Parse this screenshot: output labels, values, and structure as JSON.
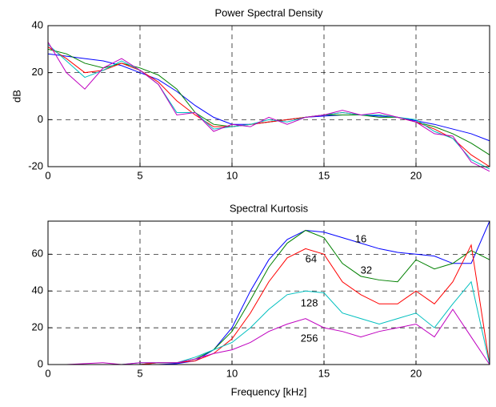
{
  "chart_data": [
    {
      "type": "line",
      "title": "Power Spectral Density",
      "ylabel": "dB",
      "x": [
        0,
        1,
        2,
        3,
        4,
        5,
        6,
        7,
        8,
        9,
        10,
        11,
        12,
        13,
        14,
        15,
        16,
        17,
        18,
        19,
        20,
        21,
        22,
        23,
        24
      ],
      "xlim": [
        0,
        24
      ],
      "ylim": [
        -20,
        40
      ],
      "xticks": [
        0,
        5,
        10,
        15,
        20
      ],
      "yticks": [
        -20,
        0,
        20,
        40
      ],
      "grid": true,
      "series": [
        {
          "color": "#0000ff",
          "values": [
            28,
            27,
            26,
            25,
            23,
            20,
            17,
            12,
            6,
            1,
            -2,
            -2,
            -1,
            0,
            1,
            1.5,
            2,
            2,
            1.5,
            1,
            -0.5,
            -2,
            -4,
            -6,
            -9
          ]
        },
        {
          "color": "#008000",
          "values": [
            30,
            28,
            24,
            22,
            24,
            22,
            19,
            13,
            3,
            -2,
            -3,
            -2,
            -1,
            0,
            1,
            2,
            2,
            2,
            1,
            1,
            -1,
            -3,
            -6,
            -10,
            -15
          ]
        },
        {
          "color": "#ff0000",
          "values": [
            31,
            26,
            20,
            21,
            24,
            21,
            16,
            8,
            2,
            -3,
            -3,
            -2,
            -1,
            0,
            1,
            2,
            3,
            2,
            2,
            1,
            -1,
            -4,
            -8,
            -15,
            -20
          ]
        },
        {
          "color": "#00bfbf",
          "values": [
            32,
            25,
            18,
            21,
            25,
            21,
            15,
            3,
            3,
            -4,
            -3,
            -2,
            0,
            -1,
            1,
            2,
            3,
            2,
            2,
            1,
            0,
            -5,
            -8,
            -17,
            -21
          ]
        },
        {
          "color": "#bf00bf",
          "values": [
            33,
            20,
            13,
            22,
            26,
            21,
            15,
            2,
            3,
            -5,
            -2,
            -3,
            1,
            -2,
            1,
            2,
            4,
            2,
            3,
            1,
            -1,
            -6,
            -7,
            -18,
            -22
          ]
        }
      ]
    },
    {
      "type": "line",
      "title": "Spectral Kurtosis",
      "xlabel": "Frequency [kHz]",
      "x": [
        0,
        1,
        2,
        3,
        4,
        5,
        6,
        7,
        8,
        9,
        10,
        11,
        12,
        13,
        14,
        15,
        16,
        17,
        18,
        19,
        20,
        21,
        22,
        23,
        24
      ],
      "xlim": [
        0,
        24
      ],
      "ylim": [
        0,
        78
      ],
      "xticks": [
        0,
        5,
        10,
        15,
        20
      ],
      "yticks": [
        0,
        20,
        40,
        60
      ],
      "grid": true,
      "series": [
        {
          "name": "16",
          "color": "#0000ff",
          "values": [
            0,
            0,
            0,
            0,
            0,
            0,
            0,
            0.5,
            2,
            8,
            20,
            40,
            57,
            68,
            73,
            72,
            69,
            66,
            63,
            61,
            60,
            59,
            55,
            55,
            78
          ]
        },
        {
          "name": "32",
          "color": "#008000",
          "values": [
            0,
            0,
            0,
            0,
            0,
            0,
            1,
            1,
            3,
            8,
            18,
            35,
            53,
            66,
            73,
            69,
            55,
            48,
            46,
            45,
            57,
            52,
            55,
            62,
            57
          ]
        },
        {
          "name": "64",
          "color": "#ff0000",
          "values": [
            0,
            0,
            0,
            0,
            0,
            0,
            1,
            1,
            2,
            6,
            14,
            28,
            45,
            58,
            63,
            60,
            45,
            38,
            33,
            33,
            40,
            33,
            45,
            65,
            0
          ]
        },
        {
          "name": "128",
          "color": "#00bfbf",
          "values": [
            0,
            0,
            0,
            0,
            0,
            1,
            1,
            1,
            4,
            8,
            12,
            20,
            30,
            38,
            40,
            39,
            28,
            25,
            22,
            25,
            28,
            20,
            33,
            45,
            0
          ]
        },
        {
          "name": "256",
          "color": "#bf00bf",
          "values": [
            0,
            0,
            0.5,
            1,
            0,
            1,
            1,
            1,
            3,
            6,
            8,
            12,
            18,
            22,
            25,
            20,
            18,
            15,
            18,
            20,
            22,
            15,
            30,
            15,
            0
          ]
        }
      ]
    }
  ]
}
